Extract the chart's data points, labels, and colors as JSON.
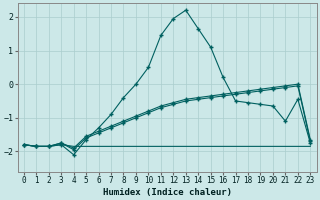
{
  "xlabel": "Humidex (Indice chaleur)",
  "bg_color": "#cce8e8",
  "grid_color": "#aacece",
  "line_color": "#006060",
  "xlim": [
    -0.5,
    23.5
  ],
  "ylim": [
    -2.6,
    2.4
  ],
  "yticks": [
    -2,
    -1,
    0,
    1,
    2
  ],
  "xticks": [
    0,
    1,
    2,
    3,
    4,
    5,
    6,
    7,
    8,
    9,
    10,
    11,
    12,
    13,
    14,
    15,
    16,
    17,
    18,
    19,
    20,
    21,
    22,
    23
  ],
  "line_main_x": [
    0,
    1,
    2,
    3,
    4,
    5,
    6,
    7,
    8,
    9,
    10,
    11,
    12,
    13,
    14,
    15,
    16,
    17,
    18,
    19,
    20,
    21,
    22,
    23
  ],
  "line_main_y": [
    -1.8,
    -1.85,
    -1.85,
    -1.8,
    -2.1,
    -1.65,
    -1.3,
    -0.9,
    -0.4,
    0.0,
    0.5,
    1.45,
    1.95,
    2.2,
    1.65,
    1.1,
    0.2,
    -0.5,
    -0.55,
    -0.6,
    -0.65,
    -1.1,
    -0.45,
    -1.75
  ],
  "line_b_x": [
    0,
    1,
    2,
    3,
    4,
    5,
    6,
    7,
    8,
    9,
    10,
    11,
    12,
    13,
    14,
    15,
    16,
    17,
    18,
    19,
    20,
    21,
    22,
    23
  ],
  "line_b_y": [
    -1.8,
    -1.85,
    -1.85,
    -1.75,
    -1.95,
    -1.6,
    -1.45,
    -1.3,
    -1.15,
    -1.0,
    -0.85,
    -0.7,
    -0.6,
    -0.5,
    -0.45,
    -0.4,
    -0.35,
    -0.3,
    -0.25,
    -0.2,
    -0.15,
    -0.1,
    -0.05,
    -1.7
  ],
  "line_c_x": [
    0,
    1,
    2,
    3,
    4,
    5,
    6,
    7,
    8,
    9,
    10,
    11,
    12,
    13,
    14,
    15,
    16,
    17,
    18,
    19,
    20,
    21,
    22,
    23
  ],
  "line_c_y": [
    -1.8,
    -1.85,
    -1.85,
    -1.75,
    -1.9,
    -1.55,
    -1.4,
    -1.25,
    -1.1,
    -0.95,
    -0.8,
    -0.65,
    -0.55,
    -0.45,
    -0.4,
    -0.35,
    -0.3,
    -0.25,
    -0.2,
    -0.15,
    -0.1,
    -0.05,
    0.0,
    -1.65
  ],
  "line_flat_x": [
    0,
    1,
    2,
    3,
    4,
    5,
    6,
    7,
    8,
    9,
    10,
    11,
    12,
    13,
    14,
    15,
    16,
    17,
    18,
    19,
    20,
    21,
    22,
    23
  ],
  "line_flat_y": [
    -1.8,
    -1.85,
    -1.85,
    -1.8,
    -1.85,
    -1.85,
    -1.85,
    -1.85,
    -1.85,
    -1.85,
    -1.85,
    -1.85,
    -1.85,
    -1.85,
    -1.85,
    -1.85,
    -1.85,
    -1.85,
    -1.85,
    -1.85,
    -1.85,
    -1.85,
    -1.85,
    -1.85
  ]
}
